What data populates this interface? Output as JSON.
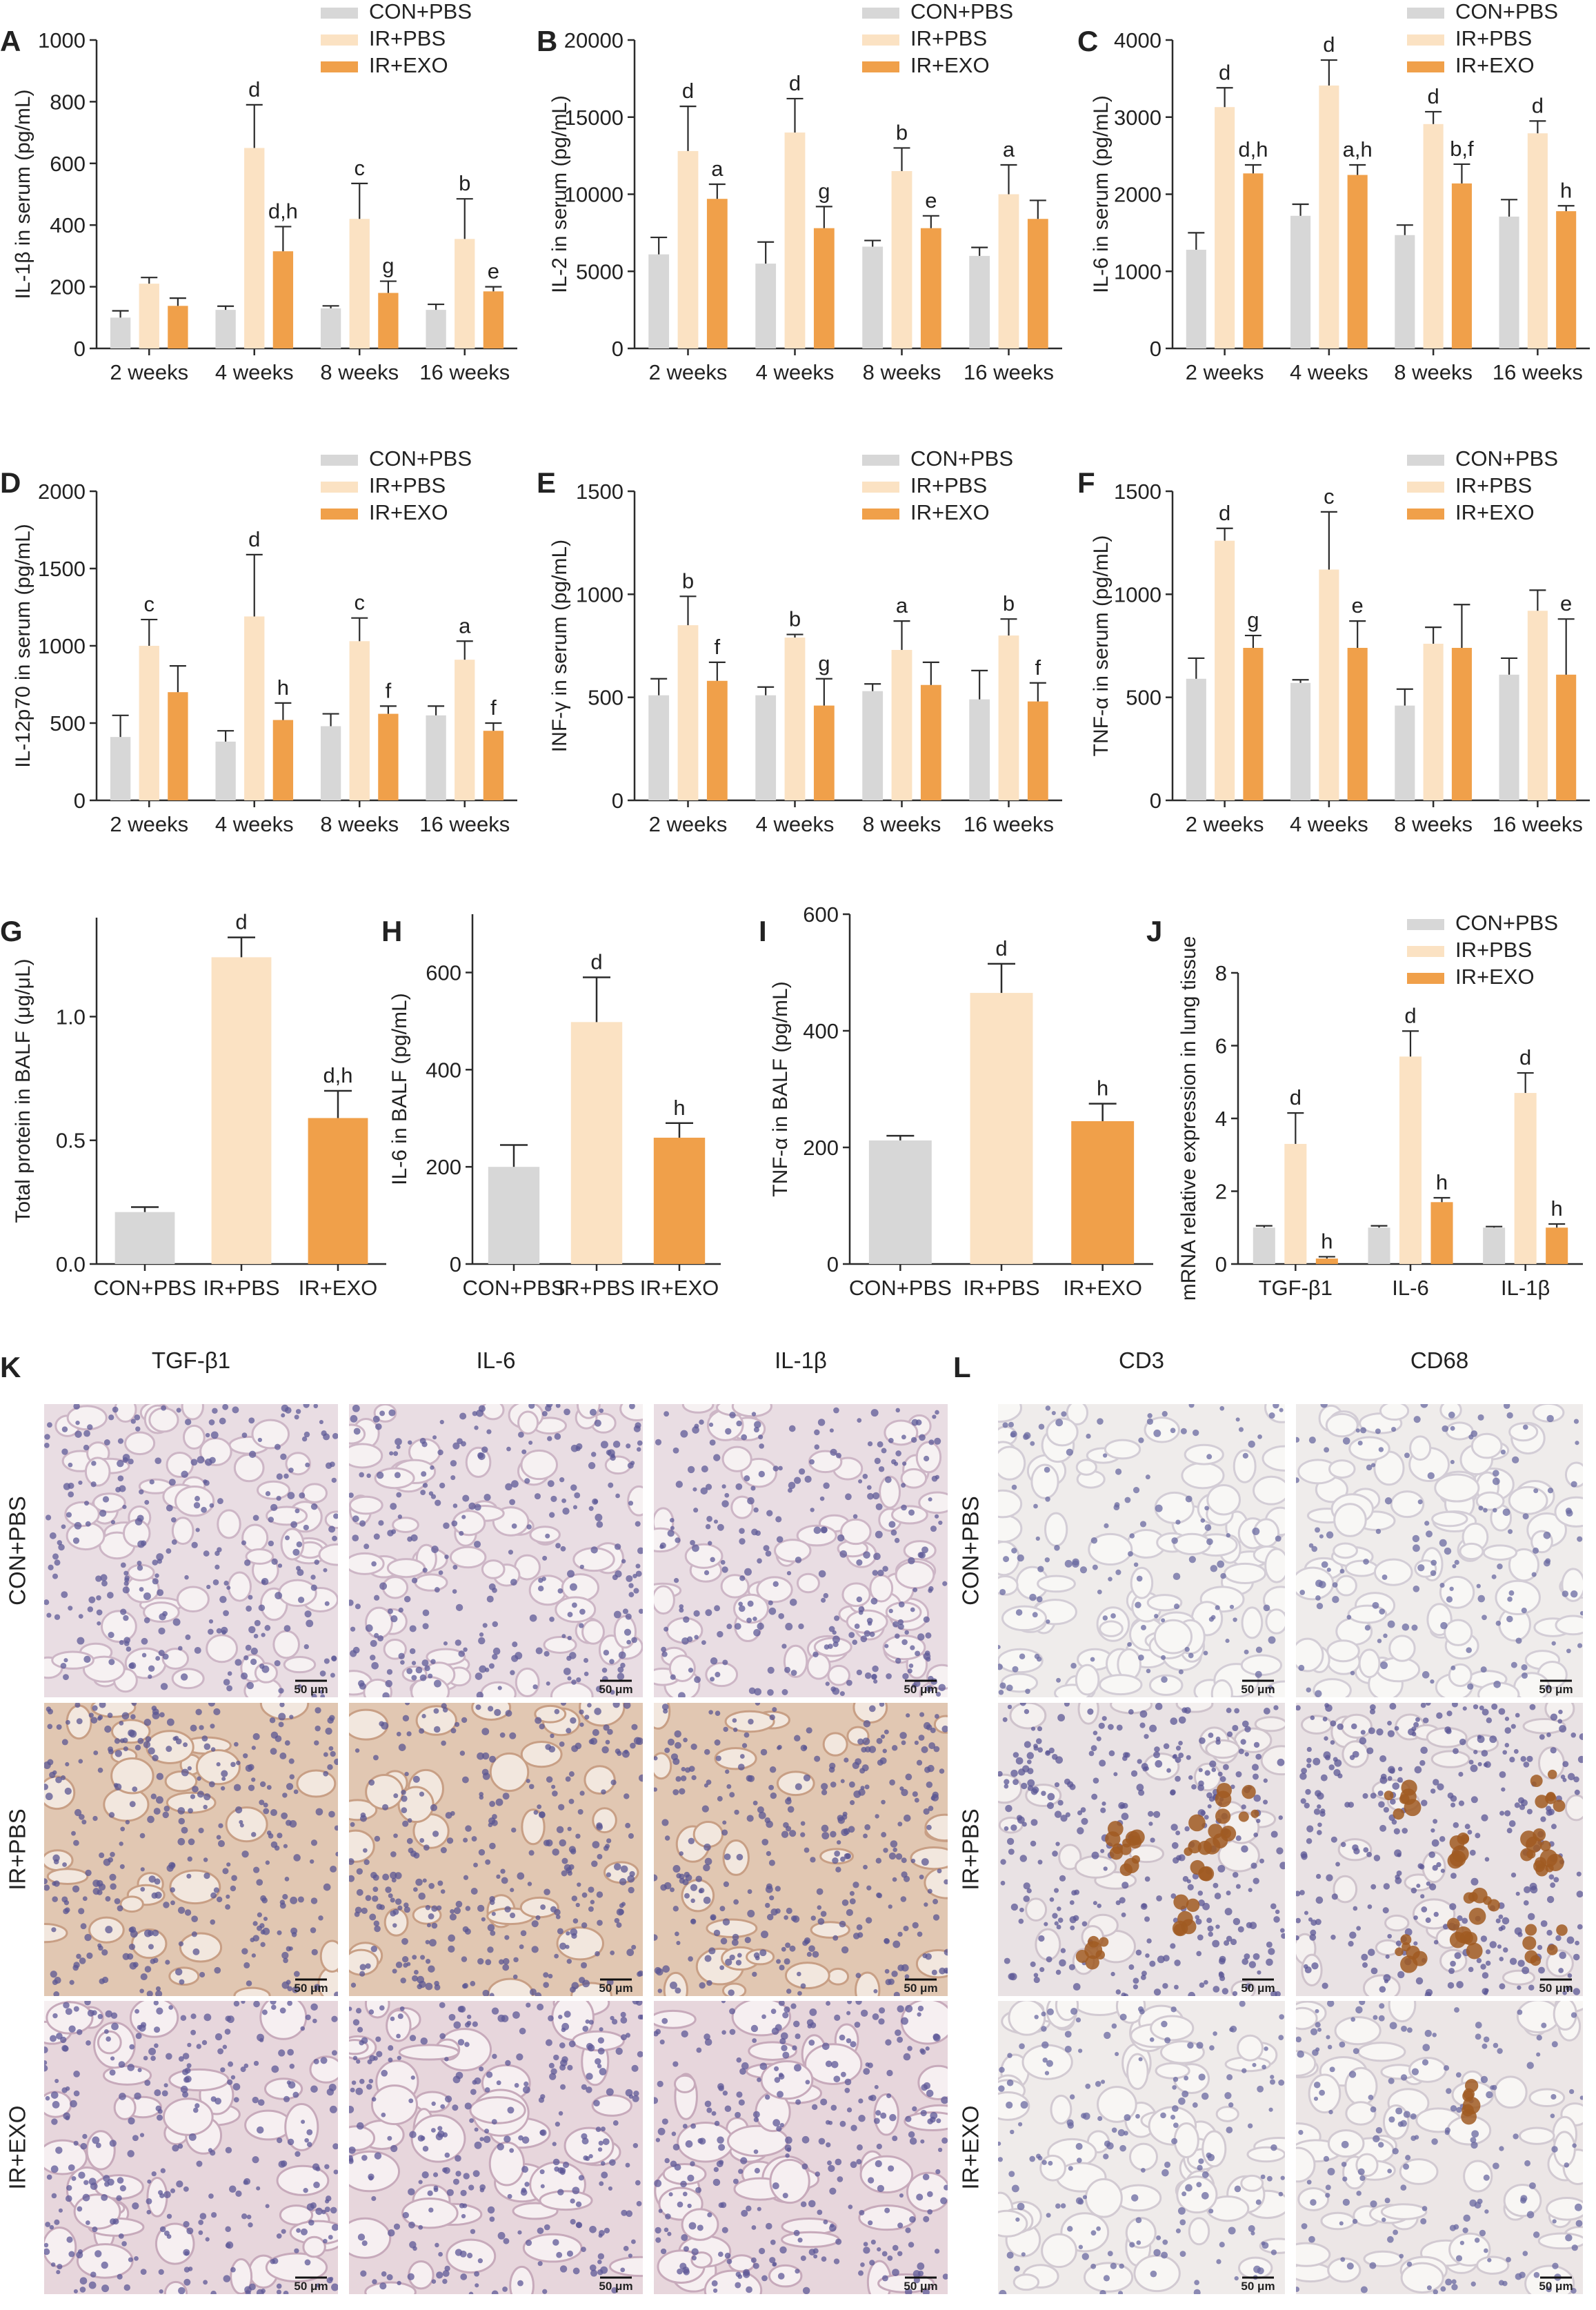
{
  "figure": {
    "legend_labels": [
      "CON+PBS",
      "IR+PBS",
      "IR+EXO"
    ],
    "colors": {
      "con": "#d7d7d7",
      "ir": "#fbe2c3",
      "exo": "#f0a04a",
      "axis": "#2b2b2b"
    },
    "scale_bar_label": "50 μm",
    "micro_panels": [
      {
        "letter": "K",
        "columns": [
          "TGF-β1",
          "IL-6",
          "IL-1β"
        ],
        "rows": [
          "CON+PBS",
          "IR+PBS",
          "IR+EXO"
        ]
      },
      {
        "letter": "L",
        "columns": [
          "CD3",
          "CD68"
        ],
        "rows": [
          "CON+PBS",
          "IR+PBS",
          "IR+EXO"
        ]
      }
    ]
  },
  "chart_data": [
    {
      "panel": "A",
      "type": "bar",
      "ylabel": "IL-1β in serum (pg/mL)",
      "categories": [
        "2 weeks",
        "4 weeks",
        "8 weeks",
        "16 weeks"
      ],
      "ylim": [
        0,
        1000
      ],
      "yticks": [
        0,
        200,
        400,
        600,
        800,
        1000
      ],
      "series": [
        {
          "name": "CON+PBS",
          "values": [
            100,
            125,
            130,
            125
          ],
          "errors": [
            22,
            12,
            8,
            18
          ],
          "labels": [
            "",
            "",
            "",
            ""
          ]
        },
        {
          "name": "IR+PBS",
          "values": [
            210,
            650,
            420,
            355
          ],
          "errors": [
            20,
            140,
            115,
            130
          ],
          "labels": [
            "",
            "d",
            "c",
            "b"
          ]
        },
        {
          "name": "IR+EXO",
          "values": [
            138,
            315,
            180,
            185
          ],
          "errors": [
            25,
            80,
            38,
            15
          ],
          "labels": [
            "",
            "d,h",
            "g",
            "e"
          ]
        }
      ]
    },
    {
      "panel": "B",
      "type": "bar",
      "ylabel": "IL-2 in serum (pg/mL)",
      "categories": [
        "2 weeks",
        "4 weeks",
        "8 weeks",
        "16 weeks"
      ],
      "ylim": [
        0,
        20000
      ],
      "yticks": [
        0,
        5000,
        10000,
        15000,
        20000
      ],
      "series": [
        {
          "name": "CON+PBS",
          "values": [
            6100,
            5500,
            6600,
            6000
          ],
          "errors": [
            1100,
            1400,
            400,
            550
          ],
          "labels": [
            "",
            "",
            "",
            ""
          ]
        },
        {
          "name": "IR+PBS",
          "values": [
            12800,
            14000,
            11500,
            10000
          ],
          "errors": [
            2900,
            2200,
            1500,
            1900
          ],
          "labels": [
            "d",
            "d",
            "b",
            "a"
          ]
        },
        {
          "name": "IR+EXO",
          "values": [
            9700,
            7800,
            7800,
            8400
          ],
          "errors": [
            950,
            1400,
            800,
            1200
          ],
          "labels": [
            "a",
            "g",
            "e",
            ""
          ]
        }
      ]
    },
    {
      "panel": "C",
      "type": "bar",
      "ylabel": "IL-6 in serum (pg/mL)",
      "categories": [
        "2 weeks",
        "4 weeks",
        "8 weeks",
        "16 weeks"
      ],
      "ylim": [
        0,
        4000
      ],
      "yticks": [
        0,
        1000,
        2000,
        3000,
        4000
      ],
      "series": [
        {
          "name": "CON+PBS",
          "values": [
            1280,
            1720,
            1470,
            1710
          ],
          "errors": [
            220,
            150,
            130,
            220
          ],
          "labels": [
            "",
            "",
            "",
            ""
          ]
        },
        {
          "name": "IR+PBS",
          "values": [
            3130,
            3410,
            2910,
            2790
          ],
          "errors": [
            250,
            330,
            160,
            160
          ],
          "labels": [
            "d",
            "d",
            "d",
            "d"
          ]
        },
        {
          "name": "IR+EXO",
          "values": [
            2270,
            2250,
            2140,
            1780
          ],
          "errors": [
            110,
            130,
            250,
            70
          ],
          "labels": [
            "d,h",
            "a,h",
            "b,f",
            "h"
          ]
        }
      ]
    },
    {
      "panel": "D",
      "type": "bar",
      "ylabel": "IL-12p70 in serum (pg/mL)",
      "categories": [
        "2 weeks",
        "4 weeks",
        "8 weeks",
        "16 weeks"
      ],
      "ylim": [
        0,
        2000
      ],
      "yticks": [
        0,
        500,
        1000,
        1500,
        2000
      ],
      "series": [
        {
          "name": "CON+PBS",
          "values": [
            410,
            380,
            480,
            550
          ],
          "errors": [
            140,
            70,
            80,
            60
          ],
          "labels": [
            "",
            "",
            "",
            ""
          ]
        },
        {
          "name": "IR+PBS",
          "values": [
            1000,
            1190,
            1030,
            910
          ],
          "errors": [
            170,
            400,
            150,
            120
          ],
          "labels": [
            "c",
            "d",
            "c",
            "a"
          ]
        },
        {
          "name": "IR+EXO",
          "values": [
            700,
            520,
            560,
            450
          ],
          "errors": [
            170,
            110,
            50,
            50
          ],
          "labels": [
            "",
            "h",
            "f",
            "f"
          ]
        }
      ]
    },
    {
      "panel": "E",
      "type": "bar",
      "ylabel": "INF-γ in serum (pg/mL)",
      "categories": [
        "2 weeks",
        "4 weeks",
        "8 weeks",
        "16 weeks"
      ],
      "ylim": [
        0,
        1500
      ],
      "yticks": [
        0,
        500,
        1000,
        1500
      ],
      "series": [
        {
          "name": "CON+PBS",
          "values": [
            510,
            510,
            530,
            490
          ],
          "errors": [
            80,
            40,
            35,
            140
          ],
          "labels": [
            "",
            "",
            "",
            ""
          ]
        },
        {
          "name": "IR+PBS",
          "values": [
            850,
            790,
            730,
            800
          ],
          "errors": [
            140,
            15,
            140,
            80
          ],
          "labels": [
            "b",
            "b",
            "a",
            "b"
          ]
        },
        {
          "name": "IR+EXO",
          "values": [
            580,
            460,
            560,
            480
          ],
          "errors": [
            90,
            130,
            110,
            90
          ],
          "labels": [
            "f",
            "g",
            "",
            "f"
          ]
        }
      ]
    },
    {
      "panel": "F",
      "type": "bar",
      "ylabel": "TNF-α in serum (pg/mL)",
      "categories": [
        "2 weeks",
        "4 weeks",
        "8 weeks",
        "16 weeks"
      ],
      "ylim": [
        0,
        1500
      ],
      "yticks": [
        0,
        500,
        1000,
        1500
      ],
      "series": [
        {
          "name": "CON+PBS",
          "values": [
            590,
            570,
            460,
            610
          ],
          "errors": [
            100,
            15,
            80,
            80
          ],
          "labels": [
            "",
            "",
            "",
            ""
          ]
        },
        {
          "name": "IR+PBS",
          "values": [
            1260,
            1120,
            760,
            920
          ],
          "errors": [
            60,
            280,
            80,
            100
          ],
          "labels": [
            "d",
            "c",
            "",
            ""
          ]
        },
        {
          "name": "IR+EXO",
          "values": [
            740,
            740,
            740,
            610
          ],
          "errors": [
            60,
            130,
            210,
            270
          ],
          "labels": [
            "g",
            "e",
            "",
            "e"
          ]
        }
      ]
    },
    {
      "panel": "G",
      "type": "bar",
      "ylabel": "Total protein in BALF (μg/μL)",
      "categories": [
        "CON+PBS",
        "IR+PBS",
        "IR+EXO"
      ],
      "ylim": [
        0,
        1.4
      ],
      "yticks": [
        0.0,
        0.5,
        1.0
      ],
      "series": [
        {
          "name": "",
          "values": [
            0.21,
            1.24,
            0.59
          ],
          "errors": [
            0.02,
            0.08,
            0.11
          ],
          "labels": [
            "",
            "d",
            "d,h"
          ]
        }
      ]
    },
    {
      "panel": "H",
      "type": "bar",
      "ylabel": "IL-6 in BALF (pg/mL)",
      "categories": [
        "CON+PBS",
        "IR+PBS",
        "IR+EXO"
      ],
      "ylim": [
        0,
        720
      ],
      "yticks": [
        0,
        200,
        400,
        600
      ],
      "series": [
        {
          "name": "",
          "values": [
            200,
            498,
            260
          ],
          "errors": [
            45,
            92,
            30
          ],
          "labels": [
            "",
            "d",
            "h"
          ]
        }
      ]
    },
    {
      "panel": "I",
      "type": "bar",
      "ylabel": "TNF-α in BALF (pg/mL)",
      "categories": [
        "CON+PBS",
        "IR+PBS",
        "IR+EXO"
      ],
      "ylim": [
        0,
        600
      ],
      "yticks": [
        0,
        200,
        400,
        600
      ],
      "series": [
        {
          "name": "",
          "values": [
            212,
            465,
            245
          ],
          "errors": [
            8,
            50,
            30
          ],
          "labels": [
            "",
            "d",
            "h"
          ]
        }
      ]
    },
    {
      "panel": "J",
      "type": "bar",
      "ylabel": "mRNA relative expression in lung tissue",
      "categories": [
        "TGF-β1",
        "IL-6",
        "IL-1β"
      ],
      "ylim": [
        0,
        8
      ],
      "yticks": [
        0,
        2,
        4,
        6,
        8
      ],
      "series": [
        {
          "name": "CON+PBS",
          "values": [
            1.0,
            1.0,
            1.0
          ],
          "errors": [
            0.05,
            0.05,
            0.03
          ],
          "labels": [
            "",
            "",
            ""
          ]
        },
        {
          "name": "IR+PBS",
          "values": [
            3.3,
            5.7,
            4.7
          ],
          "errors": [
            0.85,
            0.7,
            0.55
          ],
          "labels": [
            "d",
            "d",
            "d"
          ]
        },
        {
          "name": "IR+EXO",
          "values": [
            0.15,
            1.7,
            1.0
          ],
          "errors": [
            0.05,
            0.12,
            0.1
          ],
          "labels": [
            "h",
            "h",
            "h"
          ]
        }
      ]
    }
  ]
}
